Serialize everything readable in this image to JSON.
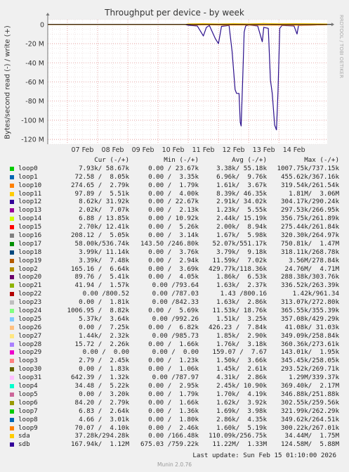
{
  "chart_data": {
    "type": "line",
    "title": "Throughput per device - by week",
    "ylabel": "Bytes/second read (-) / write (+)",
    "side_label": "RRDTOOL / TOBI OETIKER",
    "ylim": [
      -125,
      5
    ],
    "y_unit": "M",
    "yticks": [
      {
        "value": 0,
        "label": "0"
      },
      {
        "value": -20,
        "label": "-20 M"
      },
      {
        "value": -40,
        "label": "-40 M"
      },
      {
        "value": -60,
        "label": "-60 M"
      },
      {
        "value": -80,
        "label": "-80 M"
      },
      {
        "value": -100,
        "label": "-100 M"
      },
      {
        "value": -120,
        "label": "-120 M"
      }
    ],
    "xlim": [
      6.35,
      15.6
    ],
    "x_unit": "day of Feb 2026",
    "xticks": [
      {
        "value": 7,
        "label": "07 Feb"
      },
      {
        "value": 8,
        "label": "08 Feb"
      },
      {
        "value": 9,
        "label": "09 Feb"
      },
      {
        "value": 10,
        "label": "10 Feb"
      },
      {
        "value": 11,
        "label": "11 Feb"
      },
      {
        "value": 12,
        "label": "12 Feb"
      },
      {
        "value": 13,
        "label": "13 Feb"
      },
      {
        "value": 14,
        "label": "14 Feb"
      }
    ],
    "grid": true,
    "series": [
      {
        "name": "sdb",
        "color": "#2b0f8c",
        "points": [
          [
            6.35,
            0
          ],
          [
            10.9,
            0
          ],
          [
            11.0,
            -0.8
          ],
          [
            11.3,
            -1.5
          ],
          [
            11.5,
            -12
          ],
          [
            11.6,
            -3
          ],
          [
            11.7,
            -1
          ],
          [
            11.9,
            -15
          ],
          [
            12.0,
            -20
          ],
          [
            12.1,
            -2
          ],
          [
            12.35,
            -1
          ],
          [
            12.45,
            -28
          ],
          [
            12.55,
            -68
          ],
          [
            12.6,
            -72
          ],
          [
            12.68,
            -72
          ],
          [
            12.72,
            -102
          ],
          [
            12.75,
            -106
          ],
          [
            12.8,
            -60
          ],
          [
            12.85,
            -8
          ],
          [
            12.9,
            -1.5
          ],
          [
            13.0,
            -0.5
          ],
          [
            13.3,
            -1.5
          ],
          [
            13.45,
            -18
          ],
          [
            13.5,
            -3
          ],
          [
            13.65,
            -4
          ],
          [
            13.72,
            -58
          ],
          [
            13.78,
            -72
          ],
          [
            13.86,
            -105
          ],
          [
            13.92,
            -110
          ],
          [
            13.97,
            -70
          ],
          [
            14.03,
            -4
          ],
          [
            14.1,
            -1
          ],
          [
            14.5,
            -1.5
          ],
          [
            14.6,
            -10
          ],
          [
            14.65,
            -1
          ],
          [
            15.2,
            -0.5
          ],
          [
            15.6,
            0
          ]
        ]
      },
      {
        "name": "sda",
        "color": "#ffcc00",
        "points": [
          [
            6.35,
            0
          ],
          [
            10.9,
            0
          ],
          [
            11.0,
            0.6
          ],
          [
            11.5,
            0.9
          ],
          [
            12.0,
            0.5
          ],
          [
            12.5,
            0.9
          ],
          [
            13.0,
            0.6
          ],
          [
            13.5,
            1.1
          ],
          [
            14.0,
            0.7
          ],
          [
            14.5,
            0.9
          ],
          [
            15.0,
            0.8
          ],
          [
            15.6,
            0.5
          ]
        ]
      },
      {
        "name": "loop10",
        "color": "#ff8800",
        "points": [
          [
            6.35,
            0
          ],
          [
            11.0,
            0
          ],
          [
            11.2,
            -0.5
          ],
          [
            11.6,
            -0.3
          ],
          [
            12.2,
            -0.6
          ],
          [
            12.8,
            -0.4
          ],
          [
            13.4,
            -0.7
          ],
          [
            14.0,
            -0.5
          ],
          [
            14.6,
            -0.8
          ],
          [
            15.6,
            -0.3
          ]
        ]
      }
    ]
  },
  "legend": {
    "columns": [
      "Cur (-/+)",
      "Min (-/+)",
      "Avg (-/+)",
      "Max (-/+)"
    ],
    "rows": [
      {
        "name": "loop0",
        "color": "#00cc00",
        "cur": "7.93k/ 58.67k",
        "min": "0.00 / 23.67k",
        "avg": "3.38k/ 55.18k",
        "max": "1007.75k/737.15k"
      },
      {
        "name": "loop1",
        "color": "#0066b3",
        "cur": "72.58 /  8.05k",
        "min": "0.00 /  3.35k",
        "avg": "6.96k/  9.76k",
        "max": "455.62k/367.16k"
      },
      {
        "name": "loop10",
        "color": "#ff8000",
        "cur": "274.65 /  2.79k",
        "min": "0.00 /  1.79k",
        "avg": "1.61k/  3.67k",
        "max": "319.54k/261.54k"
      },
      {
        "name": "loop11",
        "color": "#ffcc00",
        "cur": "97.89 /  5.51k",
        "min": "0.00 /  4.00k",
        "avg": "8.39k/ 46.35k",
        "max": "1.81M/  3.06M"
      },
      {
        "name": "loop12",
        "color": "#330099",
        "cur": "8.62k/ 31.92k",
        "min": "0.00 / 22.67k",
        "avg": "2.91k/ 34.02k",
        "max": "304.17k/290.24k"
      },
      {
        "name": "loop13",
        "color": "#990099",
        "cur": "2.02k/  7.07k",
        "min": "0.00 /  2.13k",
        "avg": "1.23k/  5.55k",
        "max": "297.53k/266.95k"
      },
      {
        "name": "loop14",
        "color": "#ccff00",
        "cur": "6.88 / 13.85k",
        "min": "0.00 / 10.92k",
        "avg": "2.44k/ 15.19k",
        "max": "356.75k/261.89k"
      },
      {
        "name": "loop15",
        "color": "#ff0000",
        "cur": "2.70k/ 12.41k",
        "min": "0.00 /  5.26k",
        "avg": "2.00k/  8.94k",
        "max": "275.44k/261.84k"
      },
      {
        "name": "loop16",
        "color": "#808080",
        "cur": "208.12 /  5.05k",
        "min": "0.00 /  3.14k",
        "avg": "1.67k/  5.98k",
        "max": "320.30k/264.97k"
      },
      {
        "name": "loop17",
        "color": "#008f00",
        "cur": "58.00k/536.74k",
        "min": "143.50 /246.80k",
        "avg": "52.07k/551.17k",
        "max": "750.81k/  1.47M"
      },
      {
        "name": "loop18",
        "color": "#00487d",
        "cur": "3.99k/ 11.14k",
        "min": "0.00 /  3.76k",
        "avg": "3.79k/  9.18k",
        "max": "318.11k/268.78k"
      },
      {
        "name": "loop19",
        "color": "#b35a00",
        "cur": "3.39k/  7.48k",
        "min": "0.00 /  2.94k",
        "avg": "11.59k/  7.02k",
        "max": "3.56M/278.84k"
      },
      {
        "name": "loop2",
        "color": "#b38f00",
        "cur": "165.16 /  6.64k",
        "min": "0.00 /  3.69k",
        "avg": "429.77k/118.36k",
        "max": "24.76M/  4.71M"
      },
      {
        "name": "loop20",
        "color": "#6b006b",
        "cur": "89.76 /  5.41k",
        "min": "0.00 /  4.05k",
        "avg": "1.86k/  6.53k",
        "max": "288.38k/303.76k"
      },
      {
        "name": "loop21",
        "color": "#8fb300",
        "cur": "41.94 /  1.57k",
        "min": "0.00 /793.64",
        "avg": "1.63k/  2.37k",
        "max": "336.52k/263.39k"
      },
      {
        "name": "loop22",
        "color": "#b30000",
        "cur": "0.00 /800.52",
        "min": "0.00 /787.03",
        "avg": "1.43 /800.16",
        "max": "1.42k/961.34"
      },
      {
        "name": "loop23",
        "color": "#bebebe",
        "cur": "0.00 /  1.81k",
        "min": "0.00 /842.33",
        "avg": "1.63k/  2.86k",
        "max": "313.07k/272.80k"
      },
      {
        "name": "loop24",
        "color": "#80ff80",
        "cur": "1006.95 /  8.82k",
        "min": "0.00 /  5.69k",
        "avg": "11.53k/ 18.76k",
        "max": "365.55k/355.39k"
      },
      {
        "name": "loop25",
        "color": "#80c9ff",
        "cur": "5.37k/  3.64k",
        "min": "0.00 /992.26",
        "avg": "1.51k/  3.25k",
        "max": "357.08k/429.29k"
      },
      {
        "name": "loop26",
        "color": "#ffc080",
        "cur": "0.00 /  7.25k",
        "min": "0.00 /  6.82k",
        "avg": "426.23 /  7.84k",
        "max": "41.08k/ 31.03k"
      },
      {
        "name": "loop27",
        "color": "#ffe680",
        "cur": "1.44k/  2.32k",
        "min": "0.00 /985.73",
        "avg": "1.85k/  2.90k",
        "max": "349.09k/258.84k"
      },
      {
        "name": "loop28",
        "color": "#aa80ff",
        "cur": "15.72 /  2.26k",
        "min": "0.00 /  1.66k",
        "avg": "1.76k/  3.18k",
        "max": "360.36k/273.61k"
      },
      {
        "name": "loop29",
        "color": "#ee00cc",
        "cur": "0.00 /  0.00",
        "min": "0.00 /  0.00",
        "avg": "159.07 /  7.67",
        "max": "143.01k/  1.95k"
      },
      {
        "name": "loop3",
        "color": "#ff8080",
        "cur": "2.79 /  2.45k",
        "min": "0.00 /  1.23k",
        "avg": "1.50k/  3.66k",
        "max": "345.45k/258.05k"
      },
      {
        "name": "loop30",
        "color": "#666600",
        "cur": "0.00 /  1.83k",
        "min": "0.00 /  1.06k",
        "avg": "1.45k/  2.61k",
        "max": "293.52k/269.71k"
      },
      {
        "name": "loop31",
        "color": "#ffbfff",
        "cur": "642.39 /  1.32k",
        "min": "0.00 /787.97",
        "avg": "4.31k/  2.86k",
        "max": "1.29M/339.37k"
      },
      {
        "name": "loop4",
        "color": "#00ffcc",
        "cur": "34.48 /  5.22k",
        "min": "0.00 /  2.95k",
        "avg": "2.45k/ 10.90k",
        "max": "369.40k/  2.17M"
      },
      {
        "name": "loop5",
        "color": "#cc6699",
        "cur": "0.00 /  3.20k",
        "min": "0.00 /  1.79k",
        "avg": "1.70k/  4.19k",
        "max": "346.88k/251.88k"
      },
      {
        "name": "loop6",
        "color": "#999900",
        "cur": "84.20 /  2.79k",
        "min": "0.00 /  1.66k",
        "avg": "1.62k/  3.92k",
        "max": "302.55k/259.56k"
      },
      {
        "name": "loop7",
        "color": "#00cc00",
        "cur": "6.83 /  2.64k",
        "min": "0.00 /  1.36k",
        "avg": "1.69k/  3.98k",
        "max": "321.99k/262.29k"
      },
      {
        "name": "loop8",
        "color": "#0066b3",
        "cur": "4.66 /  3.01k",
        "min": "0.00 /  1.80k",
        "avg": "2.86k/  4.35k",
        "max": "349.62k/264.51k"
      },
      {
        "name": "loop9",
        "color": "#ff8000",
        "cur": "70.07 /  4.10k",
        "min": "0.00 /  2.46k",
        "avg": "1.60k/  5.19k",
        "max": "300.22k/267.01k"
      },
      {
        "name": "sda",
        "color": "#ffcc00",
        "cur": "37.28k/294.28k",
        "min": "0.00 /166.48k",
        "avg": "110.09k/256.75k",
        "max": "34.44M/  1.75M"
      },
      {
        "name": "sdb",
        "color": "#330099",
        "cur": "167.94k/  1.12M",
        "min": "675.03 /759.22k",
        "avg": "11.22M/  1.33M",
        "max": "124.58M/  5.88M"
      }
    ]
  },
  "footer": {
    "last_update": "Last update: Sun Feb 15 01:10:00 2026",
    "munin": "Munin 2.0.76"
  }
}
